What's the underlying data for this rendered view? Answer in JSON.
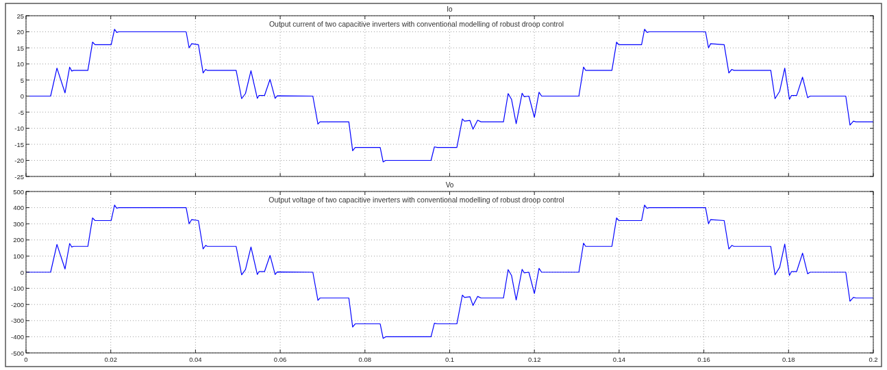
{
  "chart_data": [
    {
      "type": "line",
      "title": "Io",
      "annotations": [
        "Output current of two capacitive inverters with conventional modelling of robust droop control"
      ],
      "x": [
        0,
        0.0058,
        0.0073,
        0.0092,
        0.0103,
        0.0108,
        0.0112,
        0.0146,
        0.0157,
        0.0163,
        0.0201,
        0.0209,
        0.0214,
        0.0219,
        0.0378,
        0.0385,
        0.0391,
        0.0407,
        0.0418,
        0.0424,
        0.0428,
        0.0496,
        0.0509,
        0.0518,
        0.0531,
        0.0546,
        0.055,
        0.0563,
        0.0576,
        0.0588,
        0.0593,
        0.0677,
        0.0689,
        0.0694,
        0.0762,
        0.0771,
        0.0777,
        0.0836,
        0.0843,
        0.0849,
        0.0956,
        0.0964,
        0.0971,
        0.1017,
        0.103,
        0.1035,
        0.1048,
        0.1055,
        0.1066,
        0.1074,
        0.1127,
        0.1138,
        0.1146,
        0.1157,
        0.1171,
        0.1176,
        0.1187,
        0.12,
        0.1211,
        0.1217,
        0.1305,
        0.1316,
        0.1321,
        0.1383,
        0.1394,
        0.1399,
        0.1453,
        0.146,
        0.1466,
        0.1471,
        0.1604,
        0.1611,
        0.1616,
        0.1648,
        0.1659,
        0.1666,
        0.1671,
        0.1758,
        0.1768,
        0.1779,
        0.1791,
        0.1802,
        0.1807,
        0.1819,
        0.1833,
        0.1845,
        0.1851,
        0.1935,
        0.1945,
        0.1953,
        0.1959,
        0.2
      ],
      "series": [
        {
          "color": "#0000ff",
          "values": [
            0,
            0,
            8.7,
            1,
            9,
            7.8,
            8,
            8,
            16.8,
            16,
            16,
            20.8,
            19.8,
            20,
            20,
            15,
            16.3,
            16,
            7.2,
            8.3,
            8,
            8,
            -0.8,
            0.8,
            7.9,
            -0.7,
            0.2,
            0.2,
            5.2,
            -0.7,
            0.1,
            0,
            -8.7,
            -8,
            -8,
            -17,
            -16,
            -16,
            -20.5,
            -20,
            -20,
            -15.8,
            -16,
            -16,
            -7.1,
            -7.8,
            -7.6,
            -10.3,
            -7.5,
            -8,
            -8,
            0.8,
            -1,
            -8.6,
            0.9,
            -0.2,
            0,
            -6.6,
            1.2,
            0,
            0,
            9,
            8,
            8,
            16.8,
            16,
            16,
            20.8,
            19.8,
            20,
            20,
            15,
            16.3,
            16,
            7.2,
            8.3,
            8,
            8,
            -0.8,
            1.5,
            8.7,
            -1,
            0.2,
            0.2,
            5.9,
            -0.5,
            0,
            0,
            -9,
            -7.8,
            -8,
            -8
          ]
        }
      ],
      "xlim": [
        0,
        0.2
      ],
      "xticks": [
        0,
        0.02,
        0.04,
        0.06,
        0.08,
        0.1,
        0.12,
        0.14,
        0.16,
        0.18,
        0.2
      ],
      "ylim": [
        -25,
        25
      ],
      "yticks": [
        -25,
        -20,
        -15,
        -10,
        -5,
        0,
        5,
        10,
        15,
        20,
        25
      ],
      "grid": true,
      "tick_labels": "y"
    },
    {
      "type": "line",
      "title": "Vo",
      "annotations": [
        "Output voltage of two capacitive inverters with conventional modelling of robust droop control"
      ],
      "x": [
        0,
        0.0058,
        0.0073,
        0.0092,
        0.0103,
        0.0108,
        0.0112,
        0.0146,
        0.0157,
        0.0163,
        0.0201,
        0.0209,
        0.0214,
        0.0219,
        0.0378,
        0.0385,
        0.0391,
        0.0407,
        0.0418,
        0.0424,
        0.0428,
        0.0496,
        0.0509,
        0.0518,
        0.0531,
        0.0546,
        0.055,
        0.0563,
        0.0576,
        0.0588,
        0.0593,
        0.0677,
        0.0689,
        0.0694,
        0.0762,
        0.0771,
        0.0777,
        0.0836,
        0.0843,
        0.0849,
        0.0956,
        0.0964,
        0.0971,
        0.1017,
        0.103,
        0.1035,
        0.1048,
        0.1055,
        0.1066,
        0.1074,
        0.1127,
        0.1138,
        0.1146,
        0.1157,
        0.1171,
        0.1176,
        0.1187,
        0.12,
        0.1211,
        0.1217,
        0.1305,
        0.1316,
        0.1321,
        0.1383,
        0.1394,
        0.1399,
        0.1453,
        0.146,
        0.1466,
        0.1471,
        0.1604,
        0.1611,
        0.1616,
        0.1648,
        0.1659,
        0.1666,
        0.1671,
        0.1758,
        0.1768,
        0.1779,
        0.1791,
        0.1802,
        0.1807,
        0.1819,
        0.1833,
        0.1845,
        0.1851,
        0.1935,
        0.1945,
        0.1953,
        0.1959,
        0.2
      ],
      "series": [
        {
          "color": "#0000ff",
          "values": [
            0,
            0,
            172,
            20,
            178,
            156,
            160,
            160,
            336,
            320,
            320,
            416,
            396,
            400,
            400,
            300,
            326,
            320,
            144,
            166,
            160,
            160,
            -16,
            16,
            156,
            -14,
            4,
            4,
            104,
            -14,
            2,
            0,
            -174,
            -160,
            -160,
            -340,
            -320,
            -320,
            -410,
            -400,
            -400,
            -316,
            -320,
            -320,
            -142,
            -156,
            -152,
            -206,
            -150,
            -160,
            -160,
            16,
            -20,
            -172,
            18,
            -4,
            0,
            -132,
            24,
            0,
            0,
            180,
            160,
            160,
            336,
            320,
            320,
            416,
            396,
            400,
            400,
            300,
            326,
            320,
            144,
            166,
            160,
            160,
            -16,
            30,
            174,
            -20,
            4,
            4,
            118,
            -10,
            0,
            0,
            -180,
            -156,
            -160,
            -160
          ]
        }
      ],
      "xlim": [
        0,
        0.2
      ],
      "xticks": [
        0,
        0.02,
        0.04,
        0.06,
        0.08,
        0.1,
        0.12,
        0.14,
        0.16,
        0.18,
        0.2
      ],
      "ylim": [
        -500,
        500
      ],
      "yticks": [
        -500,
        -400,
        -300,
        -200,
        -100,
        0,
        100,
        200,
        300,
        400,
        500
      ],
      "grid": true
    }
  ]
}
